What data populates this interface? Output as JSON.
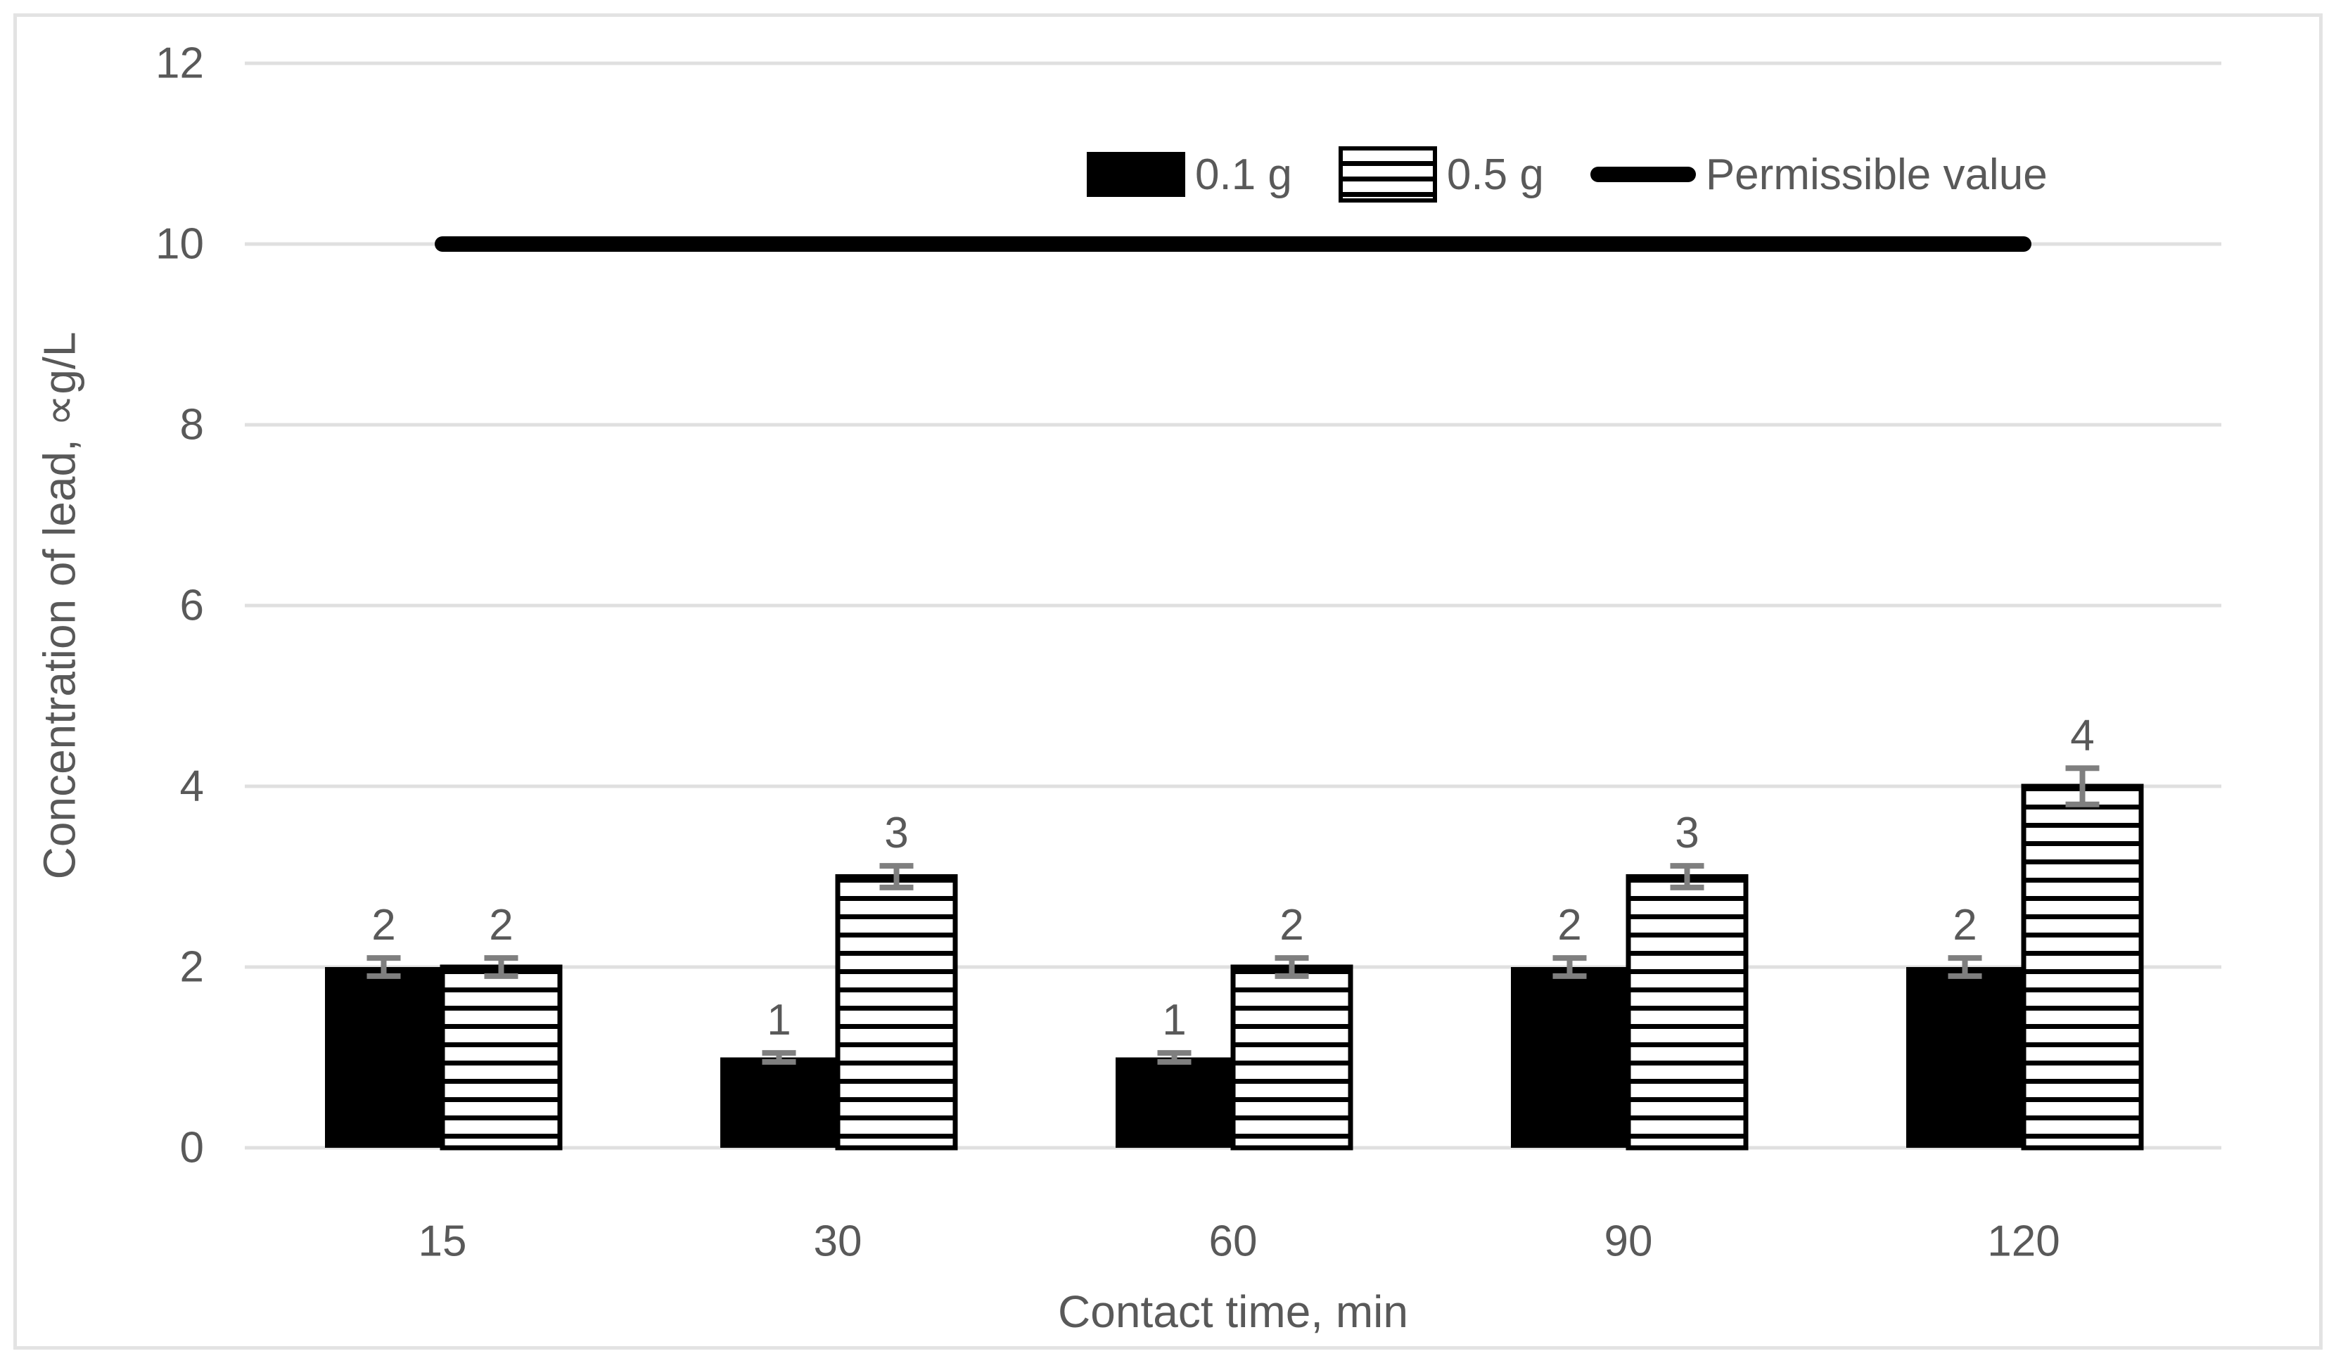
{
  "chart_data": {
    "type": "bar",
    "title": "",
    "categories": [
      "15",
      "30",
      "60",
      "90",
      "120"
    ],
    "series": [
      {
        "name": "0.1 g",
        "pattern": "solid-black",
        "values": [
          2,
          1,
          1,
          2,
          2
        ],
        "errors": [
          0.1,
          0.05,
          0.05,
          0.1,
          0.1
        ],
        "data_labels": [
          "2",
          "1",
          "1",
          "2",
          "2"
        ]
      },
      {
        "name": "0.5 g",
        "pattern": "horizontal-stripes",
        "values": [
          2,
          3,
          2,
          3,
          4
        ],
        "errors": [
          0.1,
          0.12,
          0.1,
          0.12,
          0.2
        ],
        "data_labels": [
          "2",
          "3",
          "2",
          "3",
          "4"
        ]
      }
    ],
    "reference_line": {
      "name": "Permissible value",
      "value": 10
    },
    "xlabel": "Contact time, min",
    "ylabel": "Concentration of lead, ∝g/L",
    "ylim": [
      0,
      12
    ],
    "ytick_step": 2,
    "yticks": [
      "0",
      "2",
      "4",
      "6",
      "8",
      "10",
      "12"
    ],
    "grid": true,
    "legend_position": "top"
  },
  "axes": {
    "x_title": "Contact time, min",
    "y_title": "Concentration of lead, ∝g/L"
  },
  "legend": {
    "items": [
      {
        "label": "0.1 g",
        "swatch": "solid-black-rect"
      },
      {
        "label": "0.5 g",
        "swatch": "striped-rect"
      },
      {
        "label": "Permissible value",
        "swatch": "black-line"
      }
    ]
  },
  "colors": {
    "bar_fill": "#000000",
    "stripe_fill": "#ffffff",
    "text": "#595959",
    "gridline": "#E0E0E0",
    "error_bar": "#7F7F7F",
    "reference_line": "#000000",
    "frame_border": "#E3E3E3",
    "background": "#ffffff"
  }
}
